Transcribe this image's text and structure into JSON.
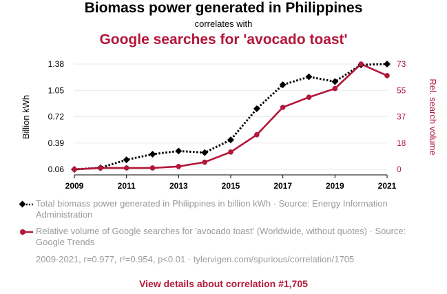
{
  "header": {
    "title": "Biomass power generated in Philippines",
    "subtitle": "correlates with",
    "title2": "Google searches for 'avocado toast'"
  },
  "legend": {
    "series1": "Total biomass power generated in Philippines in billion kWh · Source: Energy Information Administration",
    "series2": "Relative volume of Google searches for 'avocado toast' (Worldwide, without quotes) · Source: Google Trends"
  },
  "stats": "2009-2021, r=0.977, r²=0.954, p<0.01 · tylervigen.com/spurious/correlation/1705",
  "link": "View details about correlation #1,705",
  "colors": {
    "series1": "#000000",
    "series2": "#b3173a",
    "grid": "#e8e8e8"
  },
  "chart_data": {
    "type": "line",
    "x": [
      2009,
      2010,
      2011,
      2012,
      2013,
      2014,
      2015,
      2016,
      2017,
      2018,
      2019,
      2020,
      2021
    ],
    "x_ticks": [
      "2009",
      "2011",
      "2013",
      "2015",
      "2017",
      "2019",
      "2021"
    ],
    "ylabel_left": "Billion kWh",
    "ylabel_right": "Rel. search volume",
    "y_left_ticks": [
      "1.38",
      "1.05",
      "0.72",
      "0.39",
      "0.06"
    ],
    "y_right_ticks": [
      "73",
      "55",
      "37",
      "18",
      "0"
    ],
    "y_left_range": [
      0.06,
      1.38
    ],
    "y_right_range": [
      0,
      73
    ],
    "grid": true,
    "series": [
      {
        "axis": "left",
        "style": "dotted-diamond",
        "values": [
          0.06,
          0.08,
          0.18,
          0.25,
          0.29,
          0.27,
          0.43,
          0.82,
          1.12,
          1.22,
          1.16,
          1.37,
          1.38
        ]
      },
      {
        "axis": "right",
        "style": "solid-circle",
        "values": [
          0,
          1,
          1,
          1,
          2,
          5,
          12,
          24,
          43,
          50,
          56,
          73,
          65
        ]
      }
    ]
  }
}
